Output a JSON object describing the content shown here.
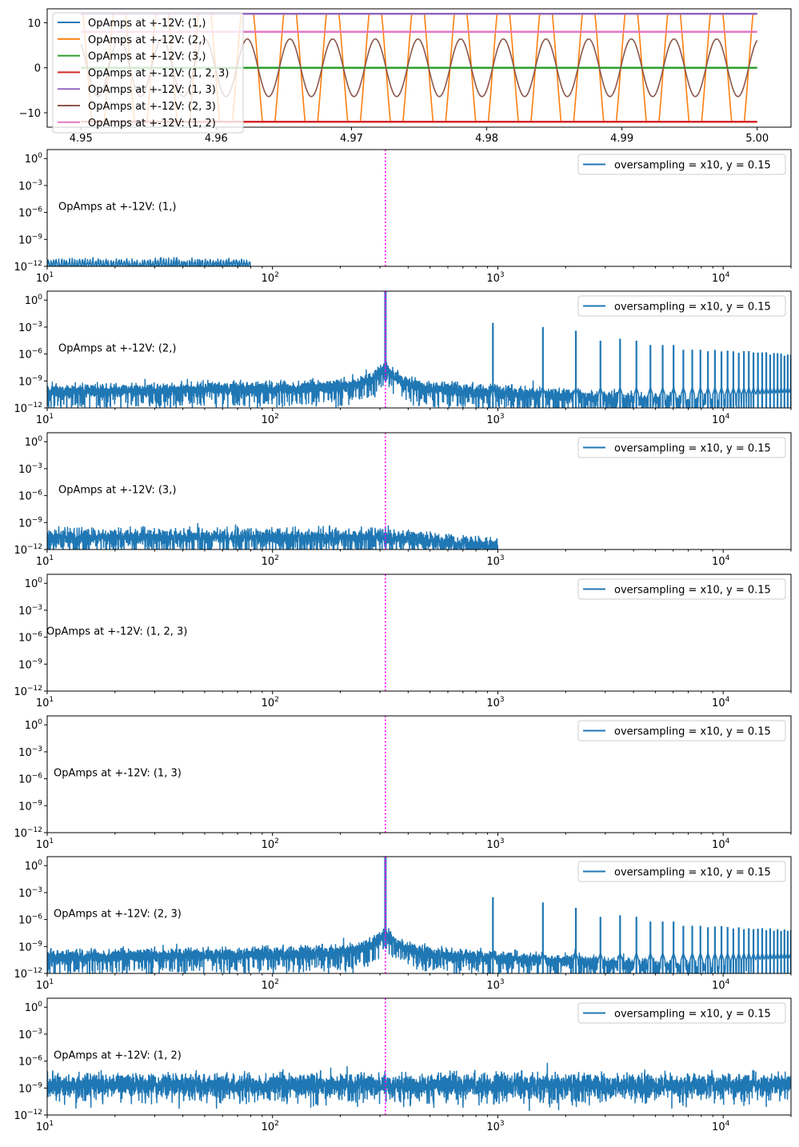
{
  "chart_data": [
    {
      "type": "line",
      "title": "",
      "xlabel": "",
      "ylabel": "",
      "xlim": [
        4.9475,
        5.0025
      ],
      "ylim": [
        -13.2,
        13.1
      ],
      "xticks": [
        4.95,
        4.96,
        4.97,
        4.98,
        4.99,
        5.0
      ],
      "xtick_labels": [
        "4.95",
        "4.96",
        "4.97",
        "4.98",
        "4.99",
        "5.00"
      ],
      "yticks": [
        10,
        0,
        -10
      ],
      "ytick_labels": [
        "10",
        "0",
        "−10"
      ],
      "x_range": [
        4.95,
        5.0
      ],
      "signal_frequency_hz": 317,
      "legend_location": "upper-left",
      "series": [
        {
          "name": "OpAmps at +-12V: (1,)",
          "color": "#1f77b4",
          "shape": "constant",
          "value": 12
        },
        {
          "name": "OpAmps at +-12V: (2,)",
          "color": "#ff7f0e",
          "shape": "clipped-sine",
          "amplitude": 20,
          "clip": 12
        },
        {
          "name": "OpAmps at +-12V: (3,)",
          "color": "#2ca02c",
          "shape": "constant",
          "value": 0
        },
        {
          "name": "OpAmps at +-12V: (1, 2, 3)",
          "color": "#d62728",
          "shape": "constant",
          "value": -12
        },
        {
          "name": "OpAmps at +-12V: (1, 3)",
          "color": "#9467bd",
          "shape": "constant",
          "value": 12
        },
        {
          "name": "OpAmps at +-12V: (2, 3)",
          "color": "#8c564b",
          "shape": "sine",
          "amplitude": 6.4
        },
        {
          "name": "OpAmps at +-12V: (1, 2)",
          "color": "#e377c2",
          "shape": "constant",
          "value": 8
        }
      ]
    },
    {
      "type": "line",
      "xscale": "log",
      "yscale": "log",
      "xlim": [
        10,
        20000
      ],
      "ylim": [
        1e-12,
        10
      ],
      "xtick_labels": [
        "10^1",
        "10^2",
        "10^3",
        "10^4"
      ],
      "ytick_labels": [
        "10^0",
        "10^-3",
        "10^-6",
        "10^-9",
        "10^-12"
      ],
      "vline_hz": 317,
      "vline_color": "#ff00ff",
      "legend_label": "oversampling = x10, y = 0.15",
      "legend_location": "upper-right",
      "series_color": "#1f77b4",
      "panels": [
        {
          "annotation": "OpAmps at +-12V: (1,)",
          "spectrum": "sparse-floor",
          "noise_floor": 1e-12,
          "max_freq_hz": 80
        },
        {
          "annotation": "OpAmps at +-12V: (2,)",
          "spectrum": "harmonics",
          "noise_floor": 1e-10,
          "fundamental_peak": 10,
          "harmonic_peaks": [
            0.003,
            0.001,
            0.0004,
            3e-05,
            5e-05,
            3e-05,
            1e-05,
            1e-05,
            1e-05,
            3e-06,
            3e-06,
            3e-06
          ]
        },
        {
          "annotation": "OpAmps at +-12V: (3,)",
          "spectrum": "decaying-floor",
          "noise_floor": 3e-11,
          "max_freq_hz": 1000
        },
        {
          "annotation": "OpAmps at +-12V: (1, 2, 3)",
          "spectrum": "empty"
        },
        {
          "annotation": "OpAmps at +-12V: (1, 3)",
          "spectrum": "empty"
        },
        {
          "annotation": "OpAmps at +-12V: (2, 3)",
          "spectrum": "harmonics",
          "noise_floor": 1e-10,
          "fundamental_peak": 10,
          "harmonic_peaks": [
            0.0003,
            8e-05,
            2e-05,
            2e-06,
            3e-06,
            2e-06,
            6e-07,
            6e-07,
            6e-07,
            2e-07,
            2e-07,
            2e-07
          ]
        },
        {
          "annotation": "OpAmps at +-12V: (1, 2)",
          "spectrum": "broadband-noise",
          "noise_floor": 5e-09
        }
      ]
    }
  ]
}
